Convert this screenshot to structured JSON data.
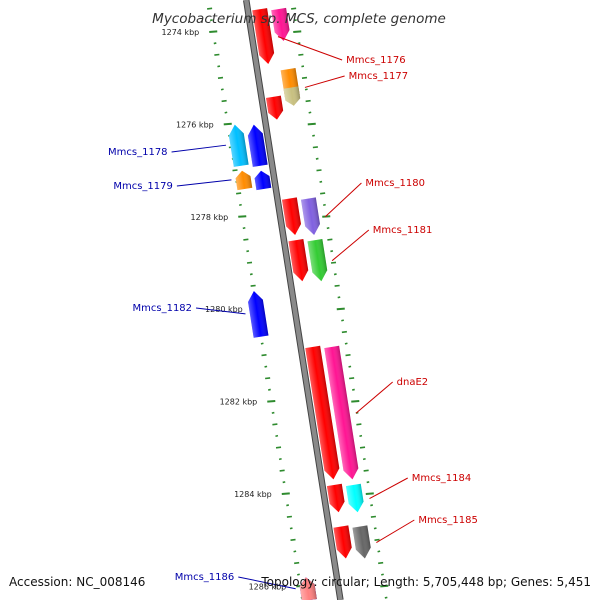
{
  "title": "Mycobacterium sp. MCS, complete genome",
  "footer": {
    "accession": "Accession: NC_008146",
    "topology": "Topology: circular; Length: 5,705,448 bp; Genes: 5,451"
  },
  "colors": {
    "backbone": "#8a8a8a",
    "tick": "#2e8b2e",
    "forward_label": "#cc0000",
    "reverse_label": "#0000aa"
  },
  "ticks": [
    {
      "label": "1274 kbp",
      "kbp": 1274
    },
    {
      "label": "1276 kbp",
      "kbp": 1276
    },
    {
      "label": "1278 kbp",
      "kbp": 1278
    },
    {
      "label": "1280 kbp",
      "kbp": 1280
    },
    {
      "label": "1282 kbp",
      "kbp": 1282
    },
    {
      "label": "1284 kbp",
      "kbp": 1284
    },
    {
      "label": "1286 kbp",
      "kbp": 1286
    }
  ],
  "genes": [
    {
      "label": "",
      "strand": "forward",
      "start_kbp": 1273.5,
      "end_kbp": 1274.2,
      "color": "#ff1493"
    },
    {
      "label": "Mmcs_1176",
      "strand": "forward",
      "start_kbp": 1273.5,
      "end_kbp": 1274.7,
      "color": "#ff0000"
    },
    {
      "label": "Mmcs_1177",
      "strand": "forward",
      "start_kbp": 1274.8,
      "end_kbp": 1275.6,
      "color": "#ff8c00"
    },
    {
      "label": "",
      "strand": "forward",
      "start_kbp": 1275.2,
      "end_kbp": 1275.6,
      "color": "#c8c080"
    },
    {
      "label": "",
      "strand": "forward",
      "start_kbp": 1275.4,
      "end_kbp": 1275.9,
      "color": "#ff0000"
    },
    {
      "label": "Mmcs_1178",
      "strand": "reverse",
      "start_kbp": 1276.0,
      "end_kbp": 1276.9,
      "color": "#00bfff"
    },
    {
      "label": "",
      "strand": "reverse",
      "start_kbp": 1276.0,
      "end_kbp": 1276.9,
      "color": "#0000ff"
    },
    {
      "label": "Mmcs_1179",
      "strand": "reverse",
      "start_kbp": 1277.0,
      "end_kbp": 1277.4,
      "color": "#ff8c00"
    },
    {
      "label": "",
      "strand": "reverse",
      "start_kbp": 1277.0,
      "end_kbp": 1277.4,
      "color": "#0000ff"
    },
    {
      "label": "Mmcs_1180",
      "strand": "forward",
      "start_kbp": 1277.6,
      "end_kbp": 1278.4,
      "color": "#8060e0"
    },
    {
      "label": "",
      "strand": "forward",
      "start_kbp": 1277.6,
      "end_kbp": 1278.4,
      "color": "#ff0000"
    },
    {
      "label": "Mmcs_1181",
      "strand": "forward",
      "start_kbp": 1278.5,
      "end_kbp": 1279.4,
      "color": "#33cc33"
    },
    {
      "label": "",
      "strand": "forward",
      "start_kbp": 1278.5,
      "end_kbp": 1279.4,
      "color": "#ff0000"
    },
    {
      "label": "Mmcs_1182",
      "strand": "reverse",
      "start_kbp": 1279.6,
      "end_kbp": 1280.6,
      "color": "#0000ff"
    },
    {
      "label": "dnaE2",
      "strand": "forward",
      "start_kbp": 1280.8,
      "end_kbp": 1283.7,
      "color": "#ff1493"
    },
    {
      "label": "",
      "strand": "forward",
      "start_kbp": 1280.8,
      "end_kbp": 1283.7,
      "color": "#ff0000"
    },
    {
      "label": "Mmcs_1184",
      "strand": "forward",
      "start_kbp": 1283.8,
      "end_kbp": 1284.4,
      "color": "#00ffff"
    },
    {
      "label": "",
      "strand": "forward",
      "start_kbp": 1283.8,
      "end_kbp": 1284.4,
      "color": "#ff0000"
    },
    {
      "label": "Mmcs_1185",
      "strand": "forward",
      "start_kbp": 1284.7,
      "end_kbp": 1285.4,
      "color": "#666666"
    },
    {
      "label": "",
      "strand": "forward",
      "start_kbp": 1284.7,
      "end_kbp": 1285.4,
      "color": "#ff0000"
    },
    {
      "label": "Mmcs_1186",
      "strand": "reverse",
      "start_kbp": 1285.8,
      "end_kbp": 1286.3,
      "color": "#0000ff"
    },
    {
      "label": "",
      "strand": "reverse",
      "start_kbp": 1285.8,
      "end_kbp": 1286.3,
      "color": "#ff8080"
    }
  ]
}
